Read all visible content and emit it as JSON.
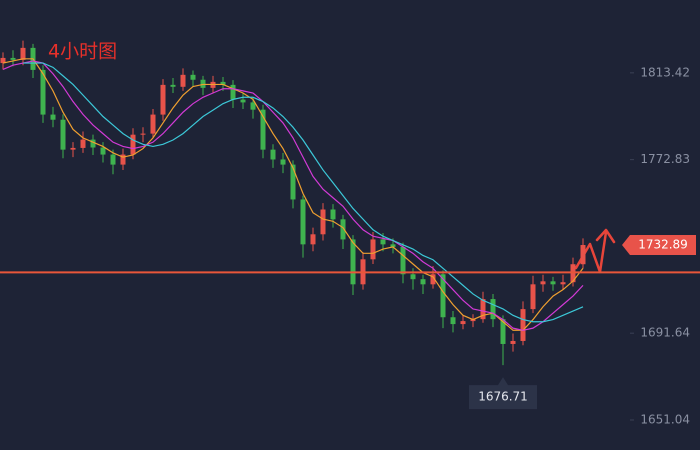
{
  "chart_data": {
    "type": "candlestick",
    "title": "4小时图",
    "up_color": "#e8534a",
    "down_color": "#3fb34f",
    "ylim": [
      1637,
      1847.5
    ],
    "yticks": [
      1813.42,
      1772.83,
      1691.64,
      1651.04
    ],
    "level": 1720.1,
    "level_color": "#e8563a",
    "candles": [
      [
        1818.0,
        1823.0,
        1815.0,
        1820.4
      ],
      [
        1820.4,
        1824.0,
        1816.5,
        1819.5
      ],
      [
        1819.5,
        1828.5,
        1817.0,
        1825.1
      ],
      [
        1825.1,
        1827.0,
        1811.0,
        1814.8
      ],
      [
        1814.8,
        1817.0,
        1790.0,
        1793.9
      ],
      [
        1793.9,
        1797.5,
        1788.0,
        1791.5
      ],
      [
        1791.5,
        1794.0,
        1773.5,
        1777.5
      ],
      [
        1777.5,
        1781.0,
        1774.0,
        1778.3
      ],
      [
        1778.3,
        1786.0,
        1776.0,
        1782.2
      ],
      [
        1782.2,
        1784.5,
        1775.0,
        1778.5
      ],
      [
        1778.5,
        1781.0,
        1771.5,
        1775.2
      ],
      [
        1775.2,
        1777.5,
        1766.0,
        1770.5
      ],
      [
        1770.5,
        1778.0,
        1768.0,
        1775.2
      ],
      [
        1775.2,
        1787.5,
        1773.0,
        1784.5
      ],
      [
        1784.5,
        1788.0,
        1781.0,
        1785.0
      ],
      [
        1785.0,
        1796.5,
        1783.0,
        1793.9
      ],
      [
        1793.9,
        1810.5,
        1791.0,
        1807.8
      ],
      [
        1807.8,
        1811.0,
        1804.0,
        1806.9
      ],
      [
        1806.9,
        1815.5,
        1805.0,
        1812.5
      ],
      [
        1812.5,
        1814.5,
        1807.0,
        1810.2
      ],
      [
        1810.2,
        1812.0,
        1803.0,
        1806.4
      ],
      [
        1806.4,
        1812.0,
        1804.0,
        1809.2
      ],
      [
        1809.2,
        1811.5,
        1805.0,
        1807.8
      ],
      [
        1807.8,
        1810.0,
        1797.0,
        1800.9
      ],
      [
        1800.9,
        1804.0,
        1796.5,
        1799.6
      ],
      [
        1799.6,
        1802.0,
        1792.0,
        1796.2
      ],
      [
        1796.2,
        1798.5,
        1773.5,
        1777.5
      ],
      [
        1777.5,
        1780.0,
        1769.0,
        1772.9
      ],
      [
        1772.9,
        1776.0,
        1766.5,
        1770.5
      ],
      [
        1770.5,
        1772.5,
        1750.0,
        1754.2
      ],
      [
        1754.2,
        1756.0,
        1727.0,
        1733.2
      ],
      [
        1733.2,
        1741.0,
        1730.0,
        1737.9
      ],
      [
        1737.9,
        1752.5,
        1735.0,
        1749.5
      ],
      [
        1749.5,
        1752.0,
        1741.0,
        1744.9
      ],
      [
        1744.9,
        1747.0,
        1731.0,
        1735.5
      ],
      [
        1735.5,
        1737.5,
        1709.5,
        1714.5
      ],
      [
        1714.5,
        1729.5,
        1712.0,
        1726.2
      ],
      [
        1726.2,
        1739.0,
        1724.0,
        1735.5
      ],
      [
        1735.5,
        1738.5,
        1730.0,
        1733.2
      ],
      [
        1733.2,
        1736.0,
        1729.0,
        1732.0
      ],
      [
        1732.0,
        1734.0,
        1715.0,
        1719.2
      ],
      [
        1719.2,
        1722.0,
        1712.0,
        1716.9
      ],
      [
        1716.9,
        1719.0,
        1710.0,
        1714.5
      ],
      [
        1714.5,
        1723.0,
        1712.5,
        1719.2
      ],
      [
        1719.2,
        1721.0,
        1694.0,
        1699.1
      ],
      [
        1699.1,
        1702.0,
        1692.0,
        1695.9
      ],
      [
        1695.9,
        1700.0,
        1693.5,
        1697.3
      ],
      [
        1697.3,
        1700.5,
        1694.5,
        1698.2
      ],
      [
        1698.2,
        1711.0,
        1696.5,
        1707.6
      ],
      [
        1707.6,
        1710.0,
        1694.5,
        1698.2
      ],
      [
        1698.2,
        1700.0,
        1676.71,
        1686.6
      ],
      [
        1686.6,
        1691.5,
        1683.0,
        1688.0
      ],
      [
        1688.0,
        1706.5,
        1686.0,
        1702.9
      ],
      [
        1702.9,
        1718.5,
        1701.0,
        1714.5
      ],
      [
        1714.5,
        1719.0,
        1711.0,
        1715.9
      ],
      [
        1715.9,
        1718.0,
        1711.5,
        1714.5
      ],
      [
        1714.5,
        1719.0,
        1712.0,
        1715.5
      ],
      [
        1715.5,
        1727.0,
        1713.5,
        1723.9
      ],
      [
        1723.9,
        1736.0,
        1722.0,
        1732.89
      ]
    ],
    "series": [
      {
        "color": "#f0a030",
        "values": [
          1818,
          1819,
          1820,
          1820,
          1813,
          1805,
          1795,
          1787,
          1783,
          1781,
          1779,
          1776,
          1774,
          1775,
          1778,
          1783,
          1790,
          1797,
          1803,
          1807,
          1808,
          1808,
          1808,
          1806,
          1804,
          1801,
          1793,
          1785,
          1778,
          1769,
          1757,
          1748,
          1745,
          1744,
          1741,
          1734,
          1729,
          1729,
          1731,
          1732,
          1728,
          1724,
          1720,
          1718,
          1711,
          1705,
          1700,
          1698,
          1700,
          1701,
          1697,
          1693,
          1693,
          1698,
          1704,
          1709,
          1712,
          1716,
          1722
        ]
      },
      {
        "color": "#d23ad6",
        "values": [
          1815,
          1817,
          1818,
          1819,
          1818,
          1813,
          1807,
          1800,
          1794,
          1789,
          1785,
          1781,
          1779,
          1778,
          1779,
          1781,
          1785,
          1790,
          1795,
          1799,
          1802,
          1804,
          1806,
          1806,
          1805,
          1804,
          1800,
          1795,
          1790,
          1783,
          1774,
          1765,
          1759,
          1755,
          1751,
          1745,
          1740,
          1737,
          1736,
          1735,
          1732,
          1729,
          1725,
          1722,
          1717,
          1712,
          1707,
          1703,
          1702,
          1701,
          1698,
          1694,
          1693,
          1694,
          1697,
          1701,
          1705,
          1709,
          1714
        ]
      },
      {
        "color": "#3cc8d8",
        "values": [
          null,
          null,
          1818,
          1818,
          1818,
          1816,
          1812,
          1808,
          1803,
          1798,
          1793,
          1789,
          1785,
          1782,
          1780,
          1779,
          1780,
          1782,
          1785,
          1789,
          1793,
          1796,
          1799,
          1801,
          1802,
          1802,
          1800,
          1797,
          1793,
          1788,
          1782,
          1775,
          1768,
          1762,
          1756,
          1750,
          1745,
          1740,
          1737,
          1735,
          1733,
          1731,
          1728,
          1726,
          1722,
          1718,
          1714,
          1710,
          1707,
          1705,
          1703,
          1700,
          1698,
          1697,
          1697,
          1698,
          1700,
          1702,
          1704
        ]
      }
    ]
  }
}
